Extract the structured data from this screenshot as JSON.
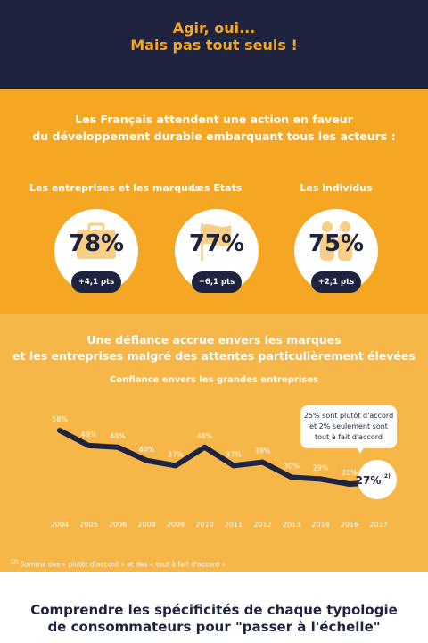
{
  "header": {
    "title_line1": "Agir, oui...",
    "title_line2": "Mais pas tout seuls !"
  },
  "section1": {
    "heading_line1": "Les Français attendent une action en faveur",
    "heading_line2": "du développement durable embarquant tous les acteurs :",
    "stats": [
      {
        "label": "Les entreprises et les marques",
        "value": "78%",
        "change": "+4,1 pts",
        "icon": "briefcase-icon"
      },
      {
        "label": "Les Etats",
        "value": "77%",
        "change": "+6,1 pts",
        "icon": "flag-icon"
      },
      {
        "label": "Les individus",
        "value": "75%",
        "change": "+2,1 pts",
        "icon": "people-icon"
      }
    ]
  },
  "section2": {
    "heading_line1": "Une défiance accrue envers les marques",
    "heading_line2": "et les entreprises malgré des attentes particulièrement élevées",
    "subtitle": "Confiance envers les grandes entreprises",
    "callout_line1": "25% sont plutôt d'accord",
    "callout_line2": "et 2% seulement sont",
    "callout_line3": "tout à fait d'accord",
    "highlight_value": "27%",
    "highlight_note": "(2)",
    "footnote_mark": "(2)",
    "footnote_text": " Somme des « plutôt d'accord » et des « tout à fait d'accord »"
  },
  "chart_data": {
    "type": "line",
    "title": "Confiance envers les grandes entreprises",
    "x": [
      "2004",
      "2005",
      "2006",
      "2008",
      "2009",
      "2010",
      "2011",
      "2012",
      "2013",
      "2014",
      "2016",
      "2017"
    ],
    "series": [
      {
        "values": [
          58,
          49,
          48,
          40,
          37,
          48,
          37,
          39,
          30,
          29,
          26,
          27
        ]
      }
    ],
    "data_labels": [
      "58%",
      "49%",
      "48%",
      "40%",
      "37%",
      "48%",
      "37%",
      "39%",
      "30%",
      "29%",
      "26%",
      "27%"
    ],
    "ylim": [
      0,
      100
    ],
    "grid": false,
    "line_color": "#1e2440"
  },
  "footer": {
    "title_line1": "Comprendre les spécificités de chaque typologie",
    "title_line2": "de consommateurs pour \"passer à l'échelle\""
  },
  "colors": {
    "navy": "#1e2440",
    "orange": "#f5a623",
    "light_orange": "#f7b648",
    "white": "#ffffff"
  }
}
